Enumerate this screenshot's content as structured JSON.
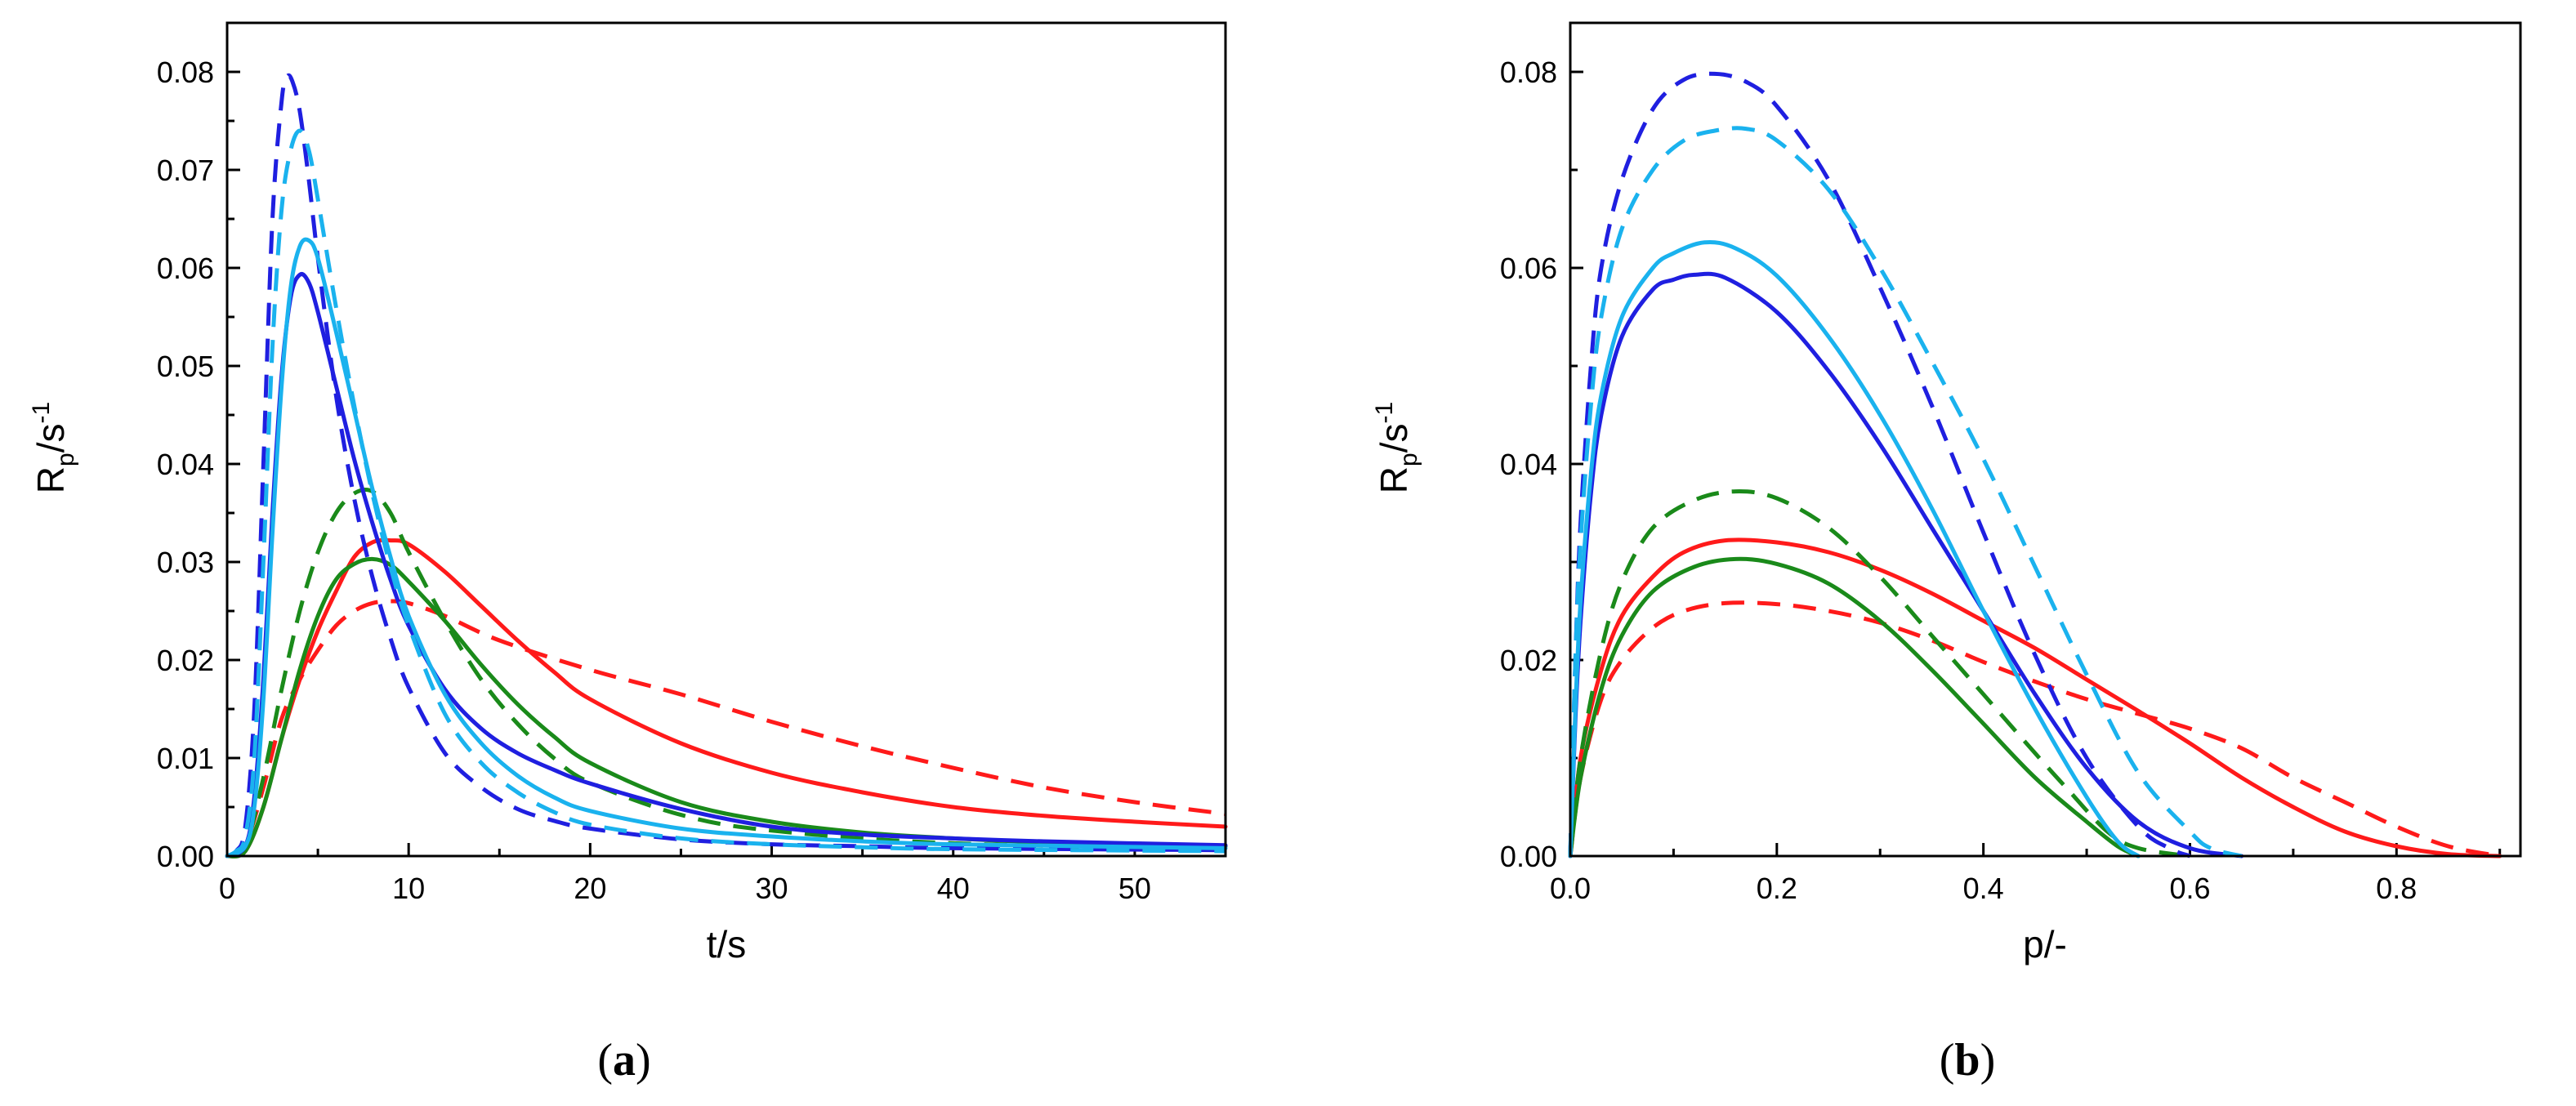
{
  "colors": {
    "red": "#ff1a1a",
    "green": "#1a8a1a",
    "blue": "#1f1fe0",
    "lightblue": "#1ab2ee"
  },
  "chart_data": [
    {
      "type": "line",
      "panel": "a",
      "caption_letter": "a",
      "xlabel": "t/s",
      "ylabel": "R",
      "ylabel_sub": "p",
      "ylabel_unit": "/s",
      "ylabel_sup": "-1",
      "xlim": [
        0,
        55
      ],
      "ylim": [
        0,
        0.085
      ],
      "xticks": [
        0,
        10,
        20,
        30,
        40,
        50
      ],
      "yticks": [
        0.0,
        0.01,
        0.02,
        0.03,
        0.04,
        0.05,
        0.06,
        0.07,
        0.08
      ],
      "xtick_labels": [
        "0",
        "10",
        "20",
        "30",
        "40",
        "50"
      ],
      "ytick_labels": [
        "0.00",
        "0.01",
        "0.02",
        "0.03",
        "0.04",
        "0.05",
        "0.06",
        "0.07",
        "0.08"
      ],
      "series": [
        {
          "name": "red dashed",
          "color": "red",
          "style": "dashed",
          "x": [
            0,
            1,
            2,
            3,
            4,
            5,
            6,
            7,
            8,
            9,
            10,
            12,
            15,
            20,
            25,
            30,
            35,
            40,
            45,
            50,
            55
          ],
          "y": [
            0,
            0.0012,
            0.007,
            0.014,
            0.018,
            0.021,
            0.0235,
            0.025,
            0.0258,
            0.026,
            0.0258,
            0.0245,
            0.022,
            0.019,
            0.0165,
            0.0137,
            0.0112,
            0.009,
            0.007,
            0.0055,
            0.0043
          ]
        },
        {
          "name": "red solid",
          "color": "red",
          "style": "solid",
          "x": [
            0,
            1,
            2,
            3,
            4,
            5,
            6,
            7,
            8,
            9,
            10,
            12,
            14,
            16,
            18,
            20,
            25,
            30,
            35,
            40,
            45,
            50,
            55
          ],
          "y": [
            0,
            0.0005,
            0.005,
            0.012,
            0.018,
            0.023,
            0.027,
            0.0305,
            0.032,
            0.0322,
            0.0318,
            0.029,
            0.0255,
            0.022,
            0.0188,
            0.016,
            0.0115,
            0.0085,
            0.0065,
            0.005,
            0.0041,
            0.0035,
            0.003
          ]
        },
        {
          "name": "green dashed",
          "color": "green",
          "style": "dashed",
          "x": [
            0,
            1,
            2,
            3,
            4,
            5,
            6,
            7,
            8,
            9,
            10,
            12,
            14,
            16,
            18,
            20,
            25,
            30,
            40,
            55
          ],
          "y": [
            0,
            0.001,
            0.008,
            0.017,
            0.025,
            0.031,
            0.035,
            0.037,
            0.0372,
            0.035,
            0.031,
            0.024,
            0.018,
            0.0135,
            0.01,
            0.0075,
            0.0042,
            0.0026,
            0.0013,
            0.0008
          ]
        },
        {
          "name": "green solid",
          "color": "green",
          "style": "solid",
          "x": [
            0,
            1,
            2,
            3,
            4,
            5,
            6,
            7,
            8,
            9,
            10,
            12,
            14,
            16,
            18,
            20,
            25,
            30,
            35,
            40,
            45,
            50,
            55
          ],
          "y": [
            0,
            0.0005,
            0.005,
            0.012,
            0.019,
            0.0245,
            0.0282,
            0.0298,
            0.0303,
            0.0297,
            0.028,
            0.024,
            0.0195,
            0.0155,
            0.0122,
            0.0095,
            0.0055,
            0.0035,
            0.0024,
            0.0018,
            0.0014,
            0.0012,
            0.001
          ]
        },
        {
          "name": "blue dashed",
          "color": "blue",
          "style": "dashed",
          "x": [
            0,
            0.5,
            1,
            1.5,
            2,
            2.5,
            3,
            3.3,
            3.6,
            4,
            4.5,
            5,
            6,
            7,
            8,
            9,
            10,
            12,
            14,
            16,
            18,
            20,
            25,
            30,
            35,
            40,
            55
          ],
          "y": [
            0,
            0.0005,
            0.003,
            0.015,
            0.04,
            0.065,
            0.077,
            0.0795,
            0.079,
            0.076,
            0.069,
            0.061,
            0.047,
            0.0365,
            0.0285,
            0.0222,
            0.0172,
            0.0105,
            0.007,
            0.0048,
            0.0036,
            0.0028,
            0.0017,
            0.0012,
            0.001,
            0.0008,
            0.0006
          ]
        },
        {
          "name": "blue solid",
          "color": "blue",
          "style": "solid",
          "x": [
            0,
            1,
            1.5,
            2,
            2.5,
            3,
            3.5,
            4,
            4.5,
            5,
            6,
            7,
            8,
            9,
            10,
            12,
            14,
            16,
            18,
            20,
            25,
            30,
            35,
            40,
            45,
            55
          ],
          "y": [
            0,
            0.001,
            0.006,
            0.018,
            0.035,
            0.049,
            0.057,
            0.0593,
            0.0585,
            0.0555,
            0.048,
            0.0405,
            0.034,
            0.0282,
            0.0235,
            0.017,
            0.013,
            0.0105,
            0.0088,
            0.0074,
            0.0048,
            0.003,
            0.0022,
            0.0018,
            0.0015,
            0.0011
          ]
        },
        {
          "name": "light blue dashed",
          "color": "lightblue",
          "style": "dashed",
          "x": [
            0,
            0.5,
            1,
            1.5,
            2,
            2.5,
            3,
            3.5,
            4,
            4.5,
            5,
            6,
            7,
            8,
            9,
            10,
            12,
            14,
            16,
            18,
            20,
            25,
            30,
            35,
            40,
            55
          ],
          "y": [
            0,
            0.0005,
            0.002,
            0.01,
            0.03,
            0.052,
            0.066,
            0.072,
            0.074,
            0.072,
            0.067,
            0.056,
            0.046,
            0.037,
            0.0295,
            0.0235,
            0.0145,
            0.0095,
            0.0065,
            0.0045,
            0.0032,
            0.0018,
            0.0012,
            0.0009,
            0.0007,
            0.0005
          ]
        },
        {
          "name": "light blue solid",
          "color": "lightblue",
          "style": "solid",
          "x": [
            0,
            1,
            1.5,
            2,
            2.5,
            3,
            3.5,
            4,
            4.5,
            5,
            6,
            7,
            8,
            9,
            10,
            12,
            14,
            16,
            18,
            20,
            25,
            30,
            35,
            40,
            55
          ],
          "y": [
            0,
            0.001,
            0.005,
            0.016,
            0.033,
            0.048,
            0.058,
            0.0622,
            0.0628,
            0.061,
            0.0535,
            0.0455,
            0.0375,
            0.0305,
            0.0245,
            0.0165,
            0.0115,
            0.0082,
            0.006,
            0.0046,
            0.0028,
            0.002,
            0.0015,
            0.0012,
            0.0008
          ]
        }
      ]
    },
    {
      "type": "line",
      "panel": "b",
      "caption_letter": "b",
      "xlabel": "p/-",
      "ylabel": "R",
      "ylabel_sub": "p",
      "ylabel_unit": "/s",
      "ylabel_sup": "-1",
      "xlim": [
        0,
        0.92
      ],
      "ylim": [
        0,
        0.085
      ],
      "xticks": [
        0.0,
        0.2,
        0.4,
        0.6,
        0.8
      ],
      "yticks": [
        0.0,
        0.02,
        0.04,
        0.06,
        0.08
      ],
      "xtick_labels": [
        "0.0",
        "0.2",
        "0.4",
        "0.6",
        "0.8"
      ],
      "ytick_labels": [
        "0.00",
        "0.02",
        "0.04",
        "0.06",
        "0.08"
      ],
      "series": [
        {
          "name": "red dashed",
          "color": "red",
          "style": "dashed",
          "x": [
            0,
            0.01,
            0.03,
            0.05,
            0.08,
            0.11,
            0.15,
            0.2,
            0.25,
            0.3,
            0.35,
            0.4,
            0.45,
            0.5,
            0.55,
            0.6,
            0.65,
            0.7,
            0.75,
            0.8,
            0.85,
            0.9
          ],
          "y": [
            0,
            0.008,
            0.016,
            0.02,
            0.0233,
            0.025,
            0.0258,
            0.0257,
            0.025,
            0.0238,
            0.022,
            0.0198,
            0.0178,
            0.016,
            0.0145,
            0.013,
            0.011,
            0.008,
            0.0055,
            0.003,
            0.001,
            0
          ]
        },
        {
          "name": "red solid",
          "color": "red",
          "style": "solid",
          "x": [
            0,
            0.01,
            0.03,
            0.05,
            0.08,
            0.11,
            0.15,
            0.2,
            0.25,
            0.3,
            0.35,
            0.4,
            0.45,
            0.5,
            0.55,
            0.6,
            0.65,
            0.7,
            0.75,
            0.8,
            0.85,
            0.9
          ],
          "y": [
            0,
            0.01,
            0.019,
            0.0245,
            0.0285,
            0.031,
            0.0322,
            0.032,
            0.031,
            0.0292,
            0.0268,
            0.024,
            0.0212,
            0.018,
            0.0148,
            0.0115,
            0.008,
            0.005,
            0.0025,
            0.001,
            0.0002,
            0
          ]
        },
        {
          "name": "green dashed",
          "color": "green",
          "style": "dashed",
          "x": [
            0,
            0.01,
            0.03,
            0.05,
            0.08,
            0.12,
            0.16,
            0.2,
            0.25,
            0.3,
            0.35,
            0.4,
            0.45,
            0.48,
            0.52,
            0.55,
            0.6
          ],
          "y": [
            0,
            0.01,
            0.021,
            0.028,
            0.0335,
            0.0363,
            0.0372,
            0.0365,
            0.0335,
            0.0285,
            0.0225,
            0.0165,
            0.0105,
            0.007,
            0.0025,
            0.0008,
            0
          ]
        },
        {
          "name": "green solid",
          "color": "green",
          "style": "solid",
          "x": [
            0,
            0.01,
            0.03,
            0.05,
            0.08,
            0.12,
            0.16,
            0.2,
            0.25,
            0.3,
            0.35,
            0.4,
            0.45,
            0.5,
            0.53,
            0.55
          ],
          "y": [
            0,
            0.008,
            0.017,
            0.0225,
            0.027,
            0.0295,
            0.0303,
            0.0298,
            0.0278,
            0.024,
            0.019,
            0.0135,
            0.008,
            0.0035,
            0.001,
            0
          ]
        },
        {
          "name": "blue dashed",
          "color": "blue",
          "style": "dashed",
          "x": [
            0,
            0.005,
            0.01,
            0.02,
            0.03,
            0.05,
            0.08,
            0.11,
            0.14,
            0.17,
            0.2,
            0.25,
            0.3,
            0.35,
            0.4,
            0.45,
            0.5,
            0.55,
            0.58,
            0.6
          ],
          "y": [
            0,
            0.02,
            0.034,
            0.05,
            0.06,
            0.069,
            0.0762,
            0.0792,
            0.0798,
            0.079,
            0.0765,
            0.069,
            0.058,
            0.046,
            0.033,
            0.0205,
            0.01,
            0.003,
            0.0008,
            0
          ]
        },
        {
          "name": "blue solid",
          "color": "blue",
          "style": "solid",
          "x": [
            0,
            0.005,
            0.01,
            0.02,
            0.03,
            0.05,
            0.08,
            0.1,
            0.12,
            0.15,
            0.2,
            0.25,
            0.3,
            0.35,
            0.4,
            0.45,
            0.5,
            0.55,
            0.6,
            0.65
          ],
          "y": [
            0,
            0.014,
            0.024,
            0.037,
            0.045,
            0.053,
            0.0578,
            0.0588,
            0.0593,
            0.059,
            0.0555,
            0.0495,
            0.042,
            0.0335,
            0.025,
            0.0165,
            0.009,
            0.0035,
            0.0008,
            0
          ]
        },
        {
          "name": "light blue dashed",
          "color": "lightblue",
          "style": "dashed",
          "x": [
            0,
            0.005,
            0.01,
            0.02,
            0.03,
            0.05,
            0.08,
            0.11,
            0.14,
            0.17,
            0.2,
            0.25,
            0.3,
            0.35,
            0.4,
            0.45,
            0.5,
            0.55,
            0.6,
            0.62,
            0.65
          ],
          "y": [
            0,
            0.02,
            0.032,
            0.046,
            0.055,
            0.064,
            0.07,
            0.073,
            0.074,
            0.0742,
            0.073,
            0.068,
            0.06,
            0.0505,
            0.0405,
            0.0295,
            0.0185,
            0.0085,
            0.0025,
            0.0008,
            0
          ]
        },
        {
          "name": "light blue solid",
          "color": "lightblue",
          "style": "solid",
          "x": [
            0,
            0.005,
            0.01,
            0.02,
            0.03,
            0.05,
            0.08,
            0.1,
            0.13,
            0.16,
            0.2,
            0.25,
            0.3,
            0.35,
            0.4,
            0.45,
            0.5,
            0.53,
            0.55
          ],
          "y": [
            0,
            0.015,
            0.026,
            0.039,
            0.047,
            0.055,
            0.06,
            0.0615,
            0.0626,
            0.062,
            0.0592,
            0.053,
            0.045,
            0.0355,
            0.025,
            0.015,
            0.006,
            0.0015,
            0
          ]
        }
      ]
    }
  ]
}
